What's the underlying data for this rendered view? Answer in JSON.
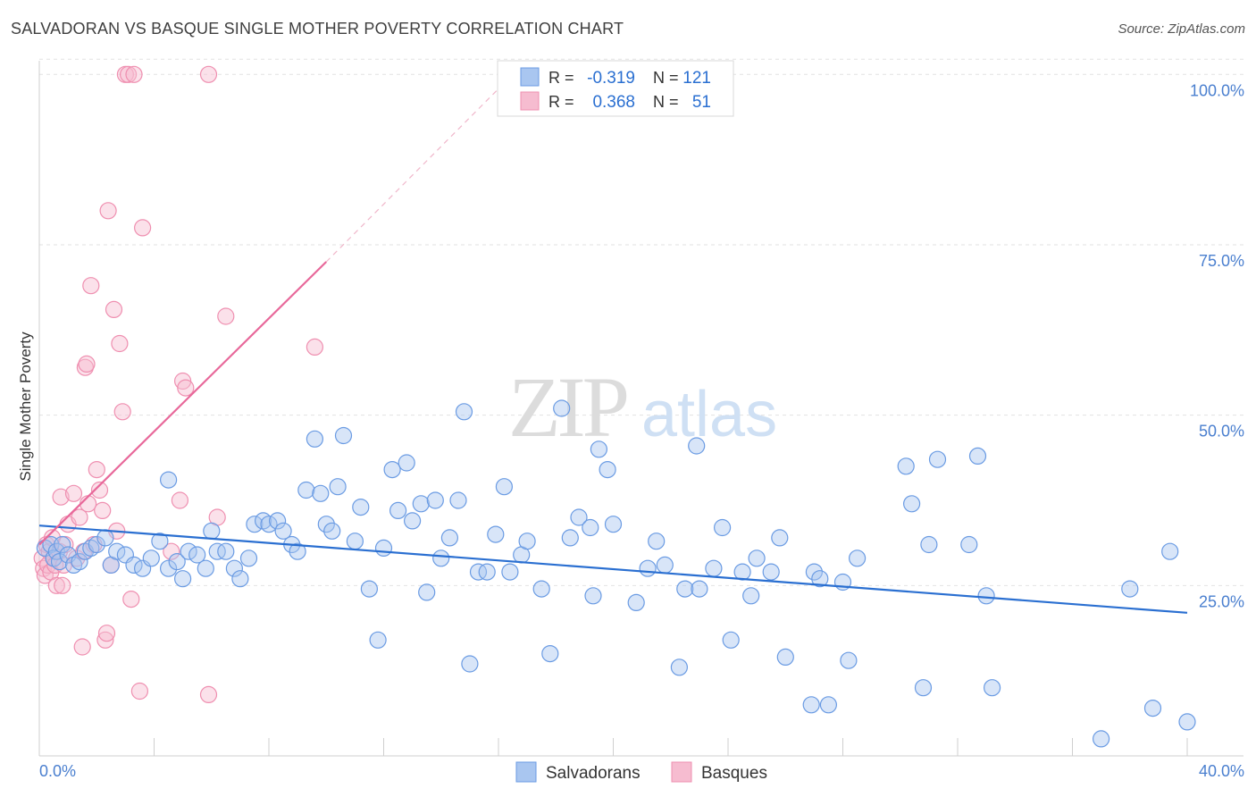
{
  "chart_data": {
    "type": "scatter",
    "title": "SALVADORAN VS BASQUE SINGLE MOTHER POVERTY CORRELATION CHART",
    "source": "Source: ZipAtlas.com",
    "xlabel": "",
    "ylabel": "Single Mother Poverty",
    "xlim": [
      0,
      40
    ],
    "ylim": [
      0,
      102
    ],
    "x_tick_labels": [
      "0.0%",
      "40.0%"
    ],
    "y_ticks": [
      {
        "value": 25,
        "label": "25.0%"
      },
      {
        "value": 50,
        "label": "50.0%"
      },
      {
        "value": 75,
        "label": "75.0%"
      },
      {
        "value": 100,
        "label": "100.0%"
      }
    ],
    "watermark": {
      "zip": "ZIP",
      "atlas": "atlas"
    },
    "legend_stats": [
      {
        "r_label": "R =",
        "r": "-0.319",
        "n_label": "N =",
        "n": "121",
        "color": "#6a9be3"
      },
      {
        "r_label": "R =",
        "r": "0.368",
        "n_label": "N =",
        "n": "51",
        "color": "#ef8fb0"
      }
    ],
    "series": [
      {
        "name": "Salvadorans",
        "color": "#6a9be3",
        "fill": "#a9c6f0",
        "trend": {
          "x0": 0,
          "y0": 33.8,
          "x1": 40,
          "y1": 21.0,
          "color": "#2a6fd1"
        },
        "points": [
          [
            0.2,
            30.5
          ],
          [
            0.4,
            31
          ],
          [
            0.5,
            29
          ],
          [
            0.6,
            30
          ],
          [
            0.7,
            28.5
          ],
          [
            0.8,
            31
          ],
          [
            1.0,
            29.5
          ],
          [
            1.2,
            28
          ],
          [
            1.4,
            28.5
          ],
          [
            1.6,
            30
          ],
          [
            1.8,
            30.5
          ],
          [
            2.0,
            31
          ],
          [
            2.3,
            32
          ],
          [
            2.5,
            28
          ],
          [
            2.7,
            30
          ],
          [
            3.0,
            29.5
          ],
          [
            3.3,
            28
          ],
          [
            3.6,
            27.5
          ],
          [
            3.9,
            29
          ],
          [
            4.2,
            31.5
          ],
          [
            4.5,
            27.5
          ],
          [
            4.5,
            40.5
          ],
          [
            4.8,
            28.5
          ],
          [
            5.0,
            26
          ],
          [
            5.2,
            30
          ],
          [
            5.5,
            29.5
          ],
          [
            5.8,
            27.5
          ],
          [
            6.0,
            33
          ],
          [
            6.2,
            30
          ],
          [
            6.5,
            30
          ],
          [
            6.8,
            27.5
          ],
          [
            7.0,
            26
          ],
          [
            7.3,
            29
          ],
          [
            7.5,
            34
          ],
          [
            7.8,
            34.5
          ],
          [
            8.0,
            34
          ],
          [
            8.3,
            34.5
          ],
          [
            8.5,
            33
          ],
          [
            8.8,
            31
          ],
          [
            9.0,
            30
          ],
          [
            9.3,
            39
          ],
          [
            9.6,
            46.5
          ],
          [
            9.8,
            38.5
          ],
          [
            10.0,
            34
          ],
          [
            10.2,
            33
          ],
          [
            10.4,
            39.5
          ],
          [
            10.6,
            47
          ],
          [
            11.0,
            31.5
          ],
          [
            11.2,
            36.5
          ],
          [
            11.5,
            24.5
          ],
          [
            11.8,
            17
          ],
          [
            12.0,
            30.5
          ],
          [
            12.3,
            42
          ],
          [
            12.5,
            36
          ],
          [
            12.8,
            43
          ],
          [
            13.0,
            34.5
          ],
          [
            13.3,
            37
          ],
          [
            13.5,
            24
          ],
          [
            13.8,
            37.5
          ],
          [
            14.0,
            29
          ],
          [
            14.3,
            32
          ],
          [
            14.6,
            37.5
          ],
          [
            14.8,
            50.5
          ],
          [
            15.0,
            13.5
          ],
          [
            15.3,
            27
          ],
          [
            15.6,
            27
          ],
          [
            15.9,
            32.5
          ],
          [
            16.2,
            39.5
          ],
          [
            16.4,
            27
          ],
          [
            16.8,
            29.5
          ],
          [
            17.0,
            31.5
          ],
          [
            17.5,
            24.5
          ],
          [
            17.8,
            15
          ],
          [
            18.2,
            51
          ],
          [
            18.5,
            32
          ],
          [
            18.8,
            35
          ],
          [
            19.2,
            33.5
          ],
          [
            19.3,
            23.5
          ],
          [
            19.5,
            45
          ],
          [
            19.8,
            42
          ],
          [
            20.0,
            34
          ],
          [
            20.8,
            22.5
          ],
          [
            21.2,
            27.5
          ],
          [
            21.5,
            31.5
          ],
          [
            21.8,
            28
          ],
          [
            22.3,
            13
          ],
          [
            22.5,
            24.5
          ],
          [
            22.9,
            45.5
          ],
          [
            23.0,
            24.5
          ],
          [
            23.5,
            27.5
          ],
          [
            23.8,
            33.5
          ],
          [
            24.1,
            17
          ],
          [
            24.5,
            27
          ],
          [
            24.8,
            23.5
          ],
          [
            25.0,
            29
          ],
          [
            25.5,
            27
          ],
          [
            25.8,
            32
          ],
          [
            26.0,
            14.5
          ],
          [
            26.9,
            7.5
          ],
          [
            27.0,
            27
          ],
          [
            27.2,
            26
          ],
          [
            27.5,
            7.5
          ],
          [
            28.0,
            25.5
          ],
          [
            28.2,
            14
          ],
          [
            28.5,
            29
          ],
          [
            30.2,
            42.5
          ],
          [
            30.4,
            37
          ],
          [
            30.8,
            10
          ],
          [
            31.0,
            31
          ],
          [
            31.3,
            43.5
          ],
          [
            32.4,
            31
          ],
          [
            32.7,
            44
          ],
          [
            33.0,
            23.5
          ],
          [
            33.2,
            10
          ],
          [
            37.0,
            2.5
          ],
          [
            38.0,
            24.5
          ],
          [
            38.8,
            7
          ],
          [
            39.4,
            30
          ],
          [
            40.0,
            5
          ]
        ]
      },
      {
        "name": "Basques",
        "color": "#ef8fb0",
        "fill": "#f6bcd0",
        "trend": {
          "x0": 0,
          "y0": 31.0,
          "x1": 10,
          "y1": 72.5,
          "color": "#e8689a",
          "dash_to": [
            16.5,
            100
          ]
        },
        "points": [
          [
            0.1,
            29
          ],
          [
            0.15,
            27.5
          ],
          [
            0.2,
            26.5
          ],
          [
            0.25,
            31
          ],
          [
            0.3,
            28
          ],
          [
            0.35,
            30
          ],
          [
            0.4,
            27
          ],
          [
            0.45,
            32
          ],
          [
            0.5,
            29
          ],
          [
            0.55,
            28
          ],
          [
            0.6,
            25
          ],
          [
            0.7,
            30
          ],
          [
            0.75,
            38
          ],
          [
            0.8,
            25
          ],
          [
            0.85,
            28
          ],
          [
            0.9,
            31
          ],
          [
            1.0,
            34
          ],
          [
            1.2,
            38.5
          ],
          [
            1.3,
            29
          ],
          [
            1.4,
            35
          ],
          [
            1.5,
            16
          ],
          [
            1.55,
            30
          ],
          [
            1.6,
            57
          ],
          [
            1.65,
            57.5
          ],
          [
            1.7,
            37
          ],
          [
            1.8,
            69
          ],
          [
            1.9,
            31
          ],
          [
            2.0,
            42
          ],
          [
            2.1,
            39
          ],
          [
            2.2,
            36
          ],
          [
            2.3,
            17
          ],
          [
            2.35,
            18
          ],
          [
            2.4,
            80
          ],
          [
            2.5,
            28
          ],
          [
            2.6,
            65.5
          ],
          [
            2.7,
            33
          ],
          [
            2.8,
            60.5
          ],
          [
            2.9,
            50.5
          ],
          [
            3.0,
            100
          ],
          [
            3.1,
            100
          ],
          [
            3.2,
            23
          ],
          [
            3.3,
            100
          ],
          [
            3.5,
            9.5
          ],
          [
            3.6,
            77.5
          ],
          [
            4.6,
            30
          ],
          [
            4.9,
            37.5
          ],
          [
            5.0,
            55
          ],
          [
            5.1,
            54
          ],
          [
            5.9,
            9
          ],
          [
            5.9,
            100
          ],
          [
            6.2,
            35
          ],
          [
            6.5,
            64.5
          ],
          [
            9.6,
            60
          ]
        ]
      }
    ]
  }
}
